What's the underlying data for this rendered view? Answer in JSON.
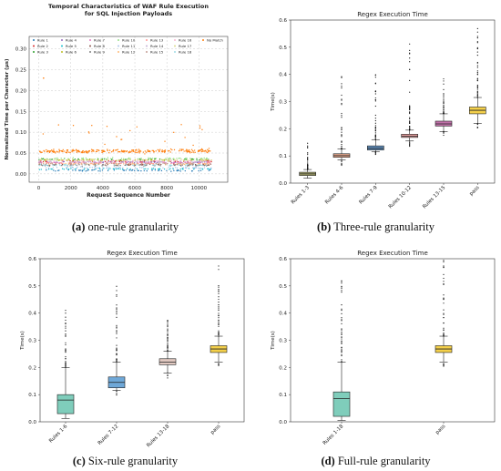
{
  "captions": [
    {
      "letter": "(a)",
      "text": "one-rule granularity"
    },
    {
      "letter": "(b)",
      "text": "Three-rule granularity"
    },
    {
      "letter": "(c)",
      "text": "Six-rule granularity"
    },
    {
      "letter": "(d)",
      "text": "Full-rule granularity"
    }
  ],
  "chart_data": [
    {
      "type": "scatter",
      "title": "Temporal Characteristics of WAF Rule Execution for SQL Injection Payloads",
      "title_lines": [
        "Temporal Characteristics of WAF Rule Execution",
        "for SQL Injection Payloads"
      ],
      "xlabel": "Request Sequence Number",
      "ylabel": "Normalized Time per Character (µs)",
      "xlim": [
        -600,
        11800
      ],
      "ylim": [
        -0.02,
        0.33
      ],
      "xticks": [
        0,
        2000,
        4000,
        6000,
        8000,
        10000
      ],
      "yticks": [
        0.0,
        0.05,
        0.1,
        0.15,
        0.2,
        0.25,
        0.3
      ],
      "grid": true,
      "legend_position": "top-left",
      "legend": [
        "Rule 1",
        "Rule 2",
        "Rule 3",
        "Rule 4",
        "Rule 5",
        "Rule 6",
        "Rule 7",
        "Rule 8",
        "Rule 9",
        "Rule 10",
        "Rule 11",
        "Rule 12",
        "Rule 13",
        "Rule 14",
        "Rule 15",
        "Rule 16",
        "Rule 17",
        "Rule 18",
        "No Match"
      ],
      "series": [
        {
          "name": "Rule 1",
          "color": "#1f77b4",
          "y_center": 0.008
        },
        {
          "name": "Rule 2",
          "color": "#d62728",
          "y_center": 0.03
        },
        {
          "name": "Rule 3",
          "color": "#2ca02c",
          "y_center": 0.035
        },
        {
          "name": "Rule 4",
          "color": "#9467bd",
          "y_center": 0.028
        },
        {
          "name": "Rule 5",
          "color": "#17becf",
          "y_center": 0.012
        },
        {
          "name": "Rule 6",
          "color": "#bcbd22",
          "y_center": 0.033
        },
        {
          "name": "Rule 7",
          "color": "#e377c2",
          "y_center": 0.027
        },
        {
          "name": "Rule 8",
          "color": "#8c564b",
          "y_center": 0.022
        },
        {
          "name": "Rule 9",
          "color": "#7f7f7f",
          "y_center": 0.02
        },
        {
          "name": "Rule 10",
          "color": "#98df8a",
          "y_center": 0.037
        },
        {
          "name": "Rule 11",
          "color": "#aec7e8",
          "y_center": 0.015
        },
        {
          "name": "Rule 12",
          "color": "#ffbb78",
          "y_center": 0.024
        },
        {
          "name": "Rule 13",
          "color": "#ff9896",
          "y_center": 0.026
        },
        {
          "name": "Rule 14",
          "color": "#c5b0d5",
          "y_center": 0.029
        },
        {
          "name": "Rule 15",
          "color": "#c49c94",
          "y_center": 0.025
        },
        {
          "name": "Rule 16",
          "color": "#f7b6d2",
          "y_center": 0.031
        },
        {
          "name": "Rule 17",
          "color": "#dbdb8d",
          "y_center": 0.034
        },
        {
          "name": "Rule 18",
          "color": "#9edae5",
          "y_center": 0.021
        },
        {
          "name": "No Match",
          "color": "#ff7f0e",
          "y_center": 0.055
        }
      ],
      "annotations": [
        {
          "x": 300,
          "y": 0.23,
          "color": "#ff7f0e"
        }
      ]
    },
    {
      "type": "box",
      "title": "Regex Execution Time",
      "ylabel": "Time(s)",
      "ylim": [
        0.0,
        0.6
      ],
      "yticks": [
        0.0,
        0.1,
        0.2,
        0.3,
        0.4,
        0.5,
        0.6
      ],
      "categories": [
        "Rules 1-3",
        "Rules 4-6",
        "Rules 7-9",
        "Rules 10-12",
        "Rules 13-15",
        "pass"
      ],
      "colors": [
        "#a8a86a",
        "#e0a48a",
        "#5f8fbf",
        "#e8a0a0",
        "#c070a8",
        "#f4d04a"
      ],
      "boxes": [
        {
          "q1": 0.028,
          "median": 0.034,
          "q3": 0.04,
          "whislo": 0.018,
          "whishi": 0.05,
          "flier_max": 0.15
        },
        {
          "q1": 0.095,
          "median": 0.101,
          "q3": 0.108,
          "whislo": 0.085,
          "whishi": 0.125,
          "flier_max": 0.41
        },
        {
          "q1": 0.122,
          "median": 0.128,
          "q3": 0.137,
          "whislo": 0.116,
          "whishi": 0.16,
          "flier_max": 0.41
        },
        {
          "q1": 0.168,
          "median": 0.173,
          "q3": 0.18,
          "whislo": 0.155,
          "whishi": 0.195,
          "flier_max": 0.52
        },
        {
          "q1": 0.21,
          "median": 0.218,
          "q3": 0.228,
          "whislo": 0.19,
          "whishi": 0.255,
          "flier_max": 0.39
        },
        {
          "q1": 0.255,
          "median": 0.268,
          "q3": 0.28,
          "whislo": 0.22,
          "whishi": 0.315,
          "flier_max": 0.6
        }
      ]
    },
    {
      "type": "box",
      "title": "Regex Execution Time",
      "ylabel": "Time(s)",
      "ylim": [
        0.0,
        0.6
      ],
      "yticks": [
        0.0,
        0.1,
        0.2,
        0.3,
        0.4,
        0.5,
        0.6
      ],
      "categories": [
        "Rules 1-6",
        "Rules 7-12",
        "Rules 13-18",
        "pass"
      ],
      "colors": [
        "#7fcdbb",
        "#6fa8d8",
        "#e0c8c0",
        "#f4d04a"
      ],
      "boxes": [
        {
          "q1": 0.03,
          "median": 0.08,
          "q3": 0.1,
          "whislo": 0.012,
          "whishi": 0.2,
          "flier_max": 0.41
        },
        {
          "q1": 0.125,
          "median": 0.145,
          "q3": 0.165,
          "whislo": 0.115,
          "whishi": 0.22,
          "flier_max": 0.52
        },
        {
          "q1": 0.21,
          "median": 0.22,
          "q3": 0.232,
          "whislo": 0.18,
          "whishi": 0.26,
          "flier_max": 0.385
        },
        {
          "q1": 0.255,
          "median": 0.268,
          "q3": 0.28,
          "whislo": 0.22,
          "whishi": 0.315,
          "flier_max": 0.6
        }
      ]
    },
    {
      "type": "box",
      "title": "Regex Execution Time",
      "ylabel": "Time(s)",
      "ylim": [
        0.0,
        0.6
      ],
      "yticks": [
        0.0,
        0.1,
        0.2,
        0.3,
        0.4,
        0.5,
        0.6
      ],
      "categories": [
        "Rules 1-18",
        "pass"
      ],
      "colors": [
        "#7fcdbb",
        "#f4d04a"
      ],
      "boxes": [
        {
          "q1": 0.02,
          "median": 0.085,
          "q3": 0.11,
          "whislo": 0.005,
          "whishi": 0.22,
          "flier_max": 0.52
        },
        {
          "q1": 0.255,
          "median": 0.268,
          "q3": 0.28,
          "whislo": 0.22,
          "whishi": 0.315,
          "flier_max": 0.6
        }
      ]
    }
  ]
}
